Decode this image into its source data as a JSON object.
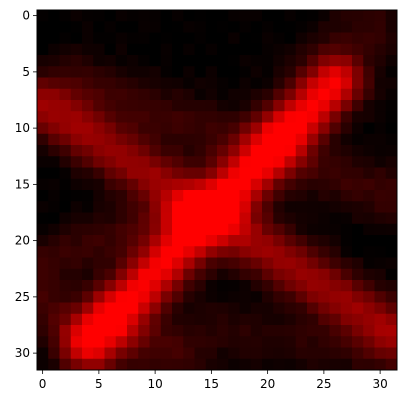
{
  "chart_data": {
    "type": "heatmap",
    "colormap": "black-to-red",
    "rows": 32,
    "cols": 32,
    "x_ticks": [
      0,
      5,
      10,
      15,
      20,
      25,
      30
    ],
    "y_ticks": [
      0,
      5,
      10,
      15,
      20,
      25,
      30
    ],
    "xlim": [
      -0.5,
      31.5
    ],
    "ylim": [
      31.5,
      -0.5
    ],
    "grid": false,
    "legend": "none",
    "description_of_pattern": "",
    "strokes": [
      {
        "from": [
          0,
          8
        ],
        "to": [
          31,
          28
        ],
        "peak": 0.55,
        "width": 1.7
      },
      {
        "from": [
          4,
          29
        ],
        "to": [
          26,
          6
        ],
        "peak": 0.85,
        "width": 1.6
      },
      {
        "from": [
          3,
          6
        ],
        "to": [
          31,
          16
        ],
        "peak": 0.18,
        "width": 1.8
      },
      {
        "from": [
          5,
          30
        ],
        "to": [
          29,
          1
        ],
        "peak": 0.16,
        "width": 2.2
      },
      {
        "from": [
          0,
          22
        ],
        "to": [
          10,
          18
        ],
        "peak": 0.18,
        "width": 1.6
      },
      {
        "from": [
          0,
          26
        ],
        "to": [
          12,
          30
        ],
        "peak": 0.2,
        "width": 1.8
      },
      {
        "from": [
          16,
          28
        ],
        "to": [
          30,
          30
        ],
        "peak": 0.12,
        "width": 1.8
      }
    ],
    "hotspots": [
      {
        "at": [
          13,
          17.5
        ],
        "peak": 0.35,
        "radius": 1.3
      },
      {
        "at": [
          21,
          10.5
        ],
        "peak": 0.25,
        "radius": 1.2
      },
      {
        "at": [
          6,
          26.5
        ],
        "peak": 0.18,
        "radius": 1.1
      }
    ]
  }
}
